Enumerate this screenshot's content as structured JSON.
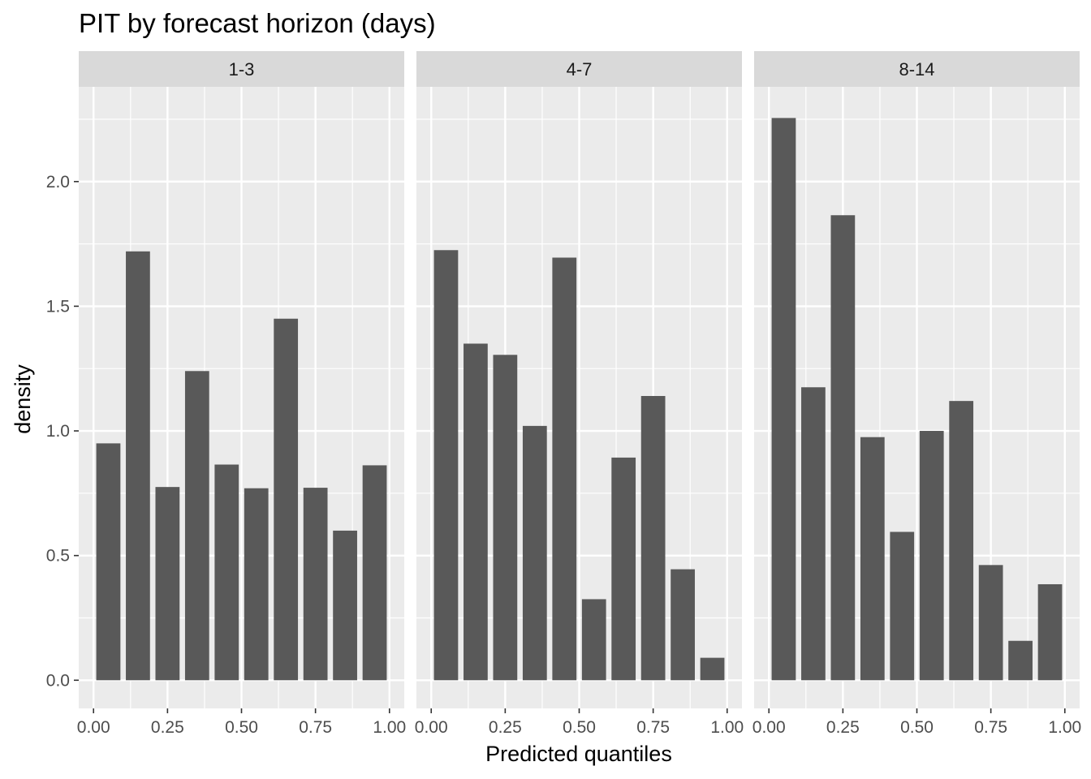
{
  "chart_data": {
    "type": "bar",
    "title": "PIT by forecast horizon (days)",
    "xlabel": "Predicted quantiles",
    "ylabel": "density",
    "xlim": [
      -0.05,
      1.05
    ],
    "ylim": [
      -0.113,
      2.38
    ],
    "x_ticks": [
      0.0,
      0.25,
      0.5,
      0.75,
      1.0
    ],
    "x_tick_labels": [
      "0.00",
      "0.25",
      "0.50",
      "0.75",
      "1.00"
    ],
    "y_ticks": [
      0.0,
      0.5,
      1.0,
      1.5,
      2.0
    ],
    "y_tick_labels": [
      "0.0",
      "0.5",
      "1.0",
      "1.5",
      "2.0"
    ],
    "bin_width": 0.1,
    "bin_centers": [
      0.05,
      0.15,
      0.25,
      0.35,
      0.45,
      0.55,
      0.65,
      0.75,
      0.85,
      0.95
    ],
    "grid": true,
    "bar_color": "#595959",
    "panel_background": "#ebebeb",
    "strip_background": "#d9d9d9",
    "panels": [
      {
        "label": "1-3",
        "values": [
          0.95,
          1.72,
          0.775,
          1.24,
          0.865,
          0.77,
          1.45,
          0.772,
          0.6,
          0.862
        ]
      },
      {
        "label": "4-7",
        "values": [
          1.725,
          1.35,
          1.305,
          1.02,
          1.695,
          0.325,
          0.893,
          1.14,
          0.445,
          0.09
        ]
      },
      {
        "label": "8-14",
        "values": [
          2.255,
          1.175,
          1.865,
          0.975,
          0.595,
          1.0,
          1.12,
          0.462,
          0.158,
          0.385
        ]
      }
    ]
  }
}
